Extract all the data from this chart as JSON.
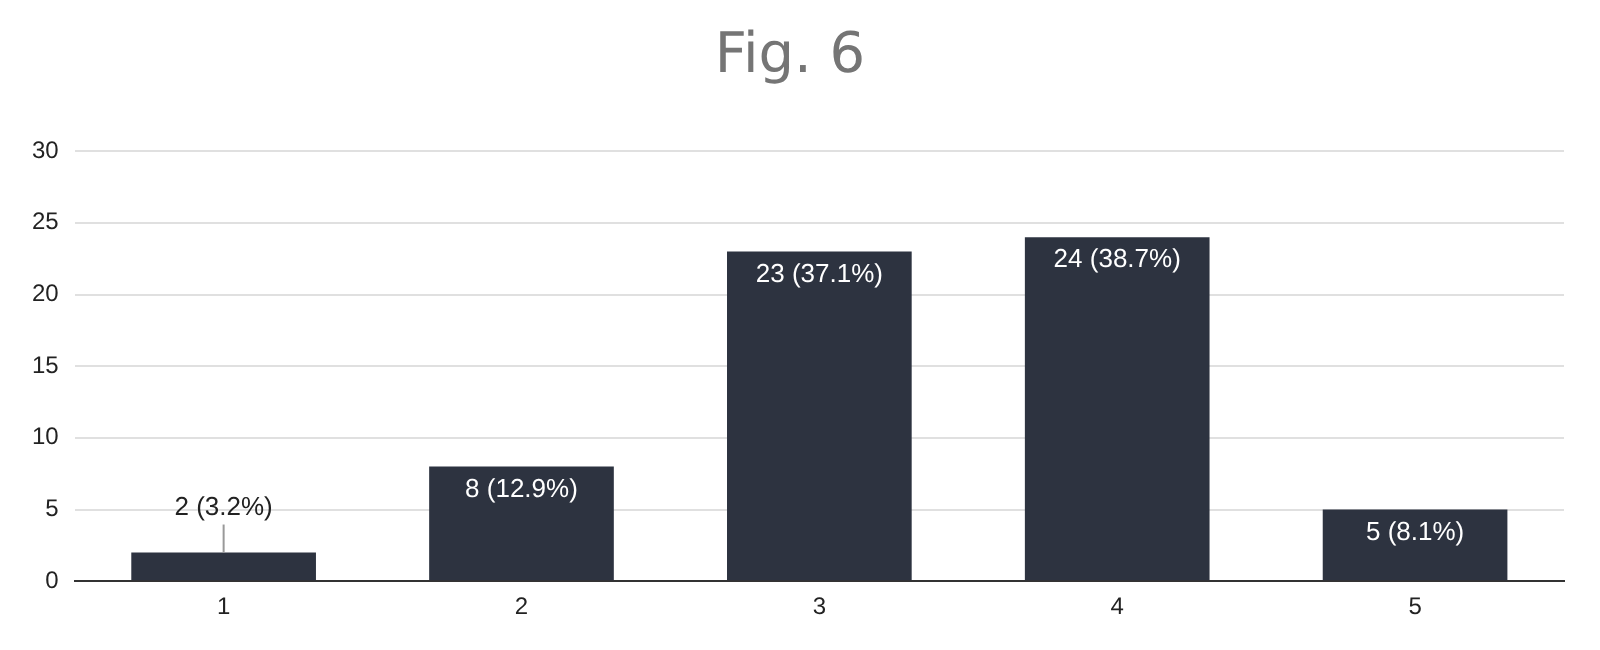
{
  "chart_data": {
    "type": "bar",
    "title": "Fig. 6",
    "categories": [
      "1",
      "2",
      "3",
      "4",
      "5"
    ],
    "values": [
      2,
      8,
      23,
      24,
      5
    ],
    "value_labels": [
      "2 (3.2%)",
      "8 (12.9%)",
      "23 (37.1%)",
      "24 (38.7%)",
      "5 (8.1%)"
    ],
    "color": "#2d3340",
    "ylim": [
      0,
      30
    ],
    "yticks": [
      0,
      5,
      10,
      15,
      20,
      25,
      30
    ],
    "grid": "y",
    "legend": false
  }
}
